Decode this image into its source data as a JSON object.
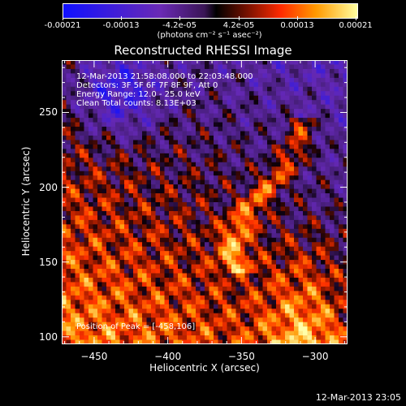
{
  "colorbar": {
    "tick_labels": [
      "-0.00021",
      "-0.00013",
      "-4.2e-05",
      "4.2e-05",
      "0.00013",
      "0.00021"
    ],
    "units": "(photons cm⁻² s⁻¹ asec⁻²)",
    "range": [
      -0.00021,
      0.00021
    ]
  },
  "chart_data": {
    "type": "heatmap",
    "title": "Reconstructed RHESSI Image",
    "xlabel": "Heliocentric X (arcsec)",
    "ylabel": "Heliocentric Y (arcsec)",
    "xlim": [
      -472,
      -278
    ],
    "ylim": [
      95,
      285
    ],
    "xticks": [
      -450,
      -400,
      -350,
      -300
    ],
    "yticks": [
      100,
      150,
      200,
      250
    ],
    "xtick_labels": [
      "−450",
      "−400",
      "−350",
      "−300"
    ],
    "ytick_labels": [
      "100",
      "150",
      "200",
      "250"
    ],
    "annotations": [
      "12-Mar-2013 21:58:08.000 to 22:03:48.000",
      "Detectors: 3F 5F 6F 7F 8F 9F, Att 0",
      "Energy Range: 12.0 - 25.0 keV",
      "Clean     Total counts: 8.13E+03"
    ],
    "peak_label": "Position of Peak = [-458,106]"
  },
  "timestamp": "12-Mar-2013 23:05"
}
